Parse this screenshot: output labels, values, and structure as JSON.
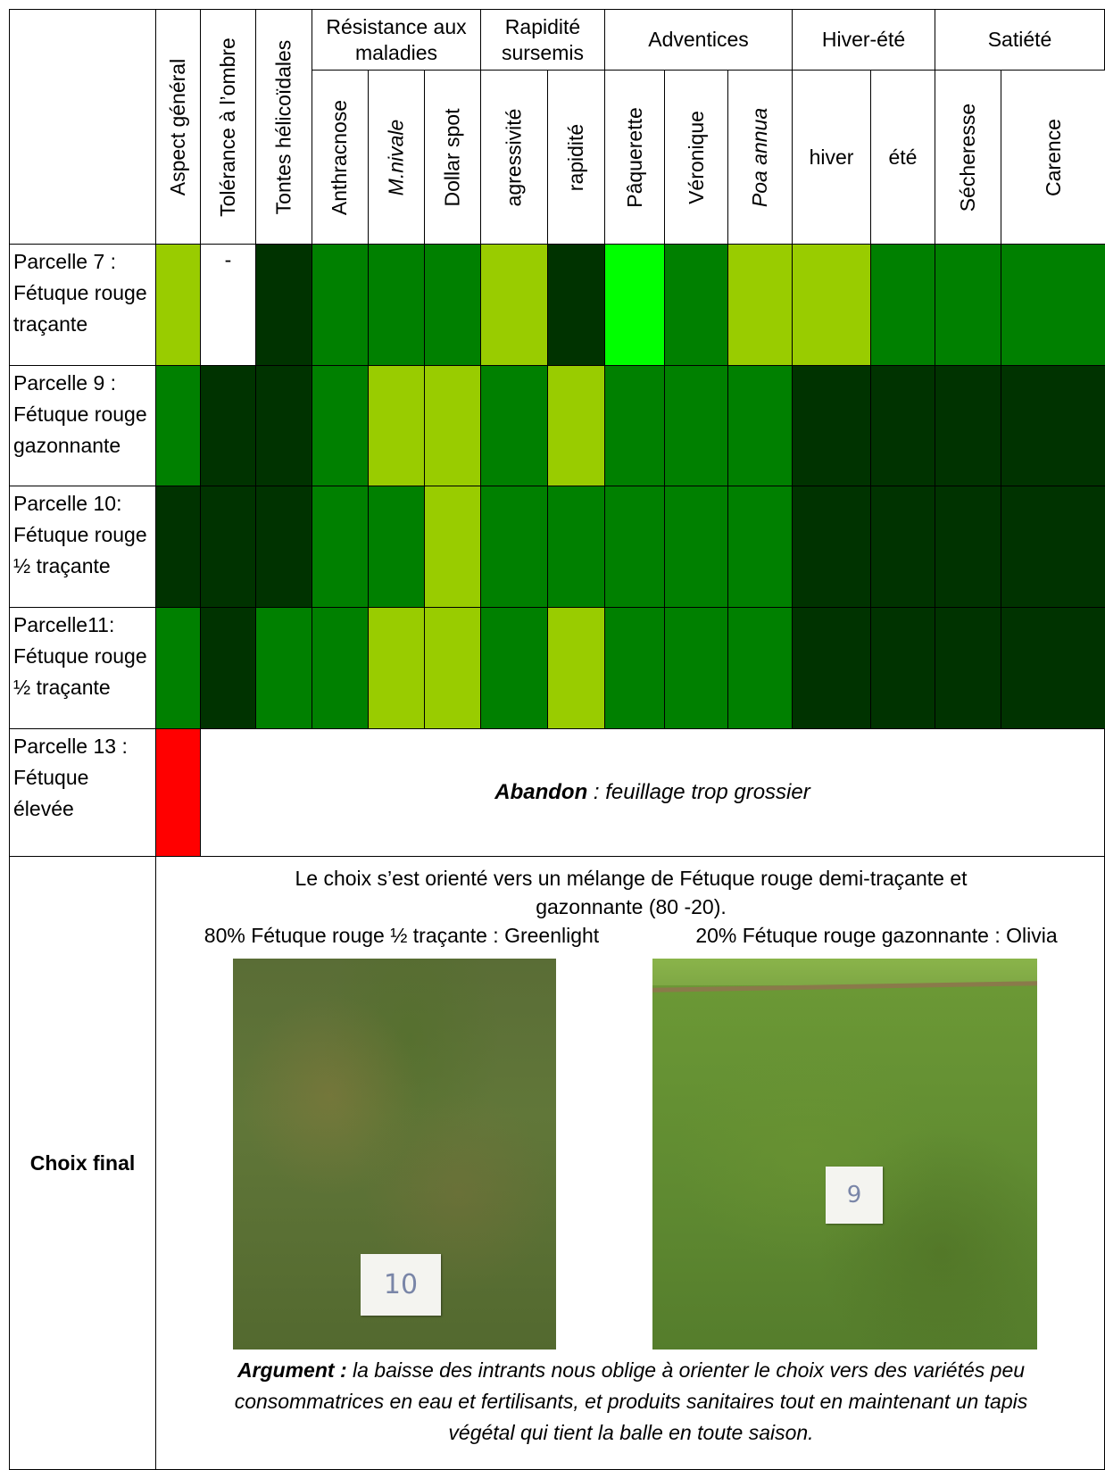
{
  "header": {
    "groups": [
      {
        "label": "Résistance aux maladies"
      },
      {
        "label": "Rapidité sursemis"
      },
      {
        "label": "Adventices"
      },
      {
        "label": "Hiver-été"
      },
      {
        "label": "Satiété"
      }
    ],
    "columns": [
      {
        "label": "Aspect général",
        "italic": false
      },
      {
        "label": "Tolérance à l’ombre",
        "italic": false
      },
      {
        "label": "Tontes hélicoïdales",
        "italic": false
      },
      {
        "label": "Anthracnose",
        "italic": false
      },
      {
        "label": "M.nivale",
        "italic": true
      },
      {
        "label": "Dollar spot",
        "italic": false
      },
      {
        "label": "agressivité",
        "italic": false
      },
      {
        "label": "rapidité",
        "italic": false
      },
      {
        "label": "Pâquerette",
        "italic": false
      },
      {
        "label": "Véronique",
        "italic": false
      },
      {
        "label": "Poa annua",
        "italic": true
      },
      {
        "label": "hiver",
        "italic": false
      },
      {
        "label": "été",
        "italic": false
      },
      {
        "label": "Sécheresse",
        "italic": false
      },
      {
        "label": "Carence",
        "italic": false
      }
    ]
  },
  "rows": [
    {
      "label": "Parcelle 7 : Fétuque rouge traçante",
      "cells": [
        "#99cc00",
        "dash",
        "#003300",
        "#008000",
        "#008000",
        "#008000",
        "#99cc00",
        "#003300",
        "#00ff00",
        "#008000",
        "#99cc00",
        "#99cc00",
        "#008000",
        "#008000",
        "#008000"
      ]
    },
    {
      "label": "Parcelle 9 : Fétuque rouge gazonnante",
      "cells": [
        "#008000",
        "#003300",
        "#003300",
        "#008000",
        "#99cc00",
        "#99cc00",
        "#008000",
        "#99cc00",
        "#008000",
        "#008000",
        "#008000",
        "#003300",
        "#003300",
        "#003300",
        "#003300"
      ]
    },
    {
      "label": "Parcelle 10: Fétuque rouge ½ traçante",
      "cells": [
        "#003300",
        "#003300",
        "#003300",
        "#008000",
        "#008000",
        "#99cc00",
        "#008000",
        "#008000",
        "#008000",
        "#008000",
        "#008000",
        "#003300",
        "#003300",
        "#003300",
        "#003300"
      ]
    },
    {
      "label": "Parcelle11: Fétuque rouge ½ traçante",
      "cells": [
        "#008000",
        "#003300",
        "#008000",
        "#008000",
        "#99cc00",
        "#99cc00",
        "#008000",
        "#99cc00",
        "#008000",
        "#008000",
        "#008000",
        "#003300",
        "#003300",
        "#003300",
        "#003300"
      ]
    }
  ],
  "dash_symbol": "-",
  "abandoned_row": {
    "label": "Parcelle 13 : Fétuque élevée",
    "color": "#ff0000",
    "note_bold": "Abandon",
    "note_rest": " : feuillage trop grossier"
  },
  "final": {
    "label": "Choix final",
    "intro_line1": "Le choix s’est orienté vers un mélange de Fétuque rouge demi-traçante  et",
    "intro_line2": "gazonnante (80 -20).",
    "left_caption": "80% Fétuque rouge ½ traçante : Greenlight",
    "right_caption": "20% Fétuque rouge gazonnante : Olivia",
    "left_plot_number": "10",
    "right_plot_number": "9",
    "argument_bold": "Argument :",
    "argument_line1": " la baisse des intrants nous oblige à orienter le choix vers des variétés peu",
    "argument_line2": "consommatrices en eau et fertilisants, et produits sanitaires tout en maintenant un tapis",
    "argument_line3": "végétal qui tient la balle en toute saison."
  }
}
